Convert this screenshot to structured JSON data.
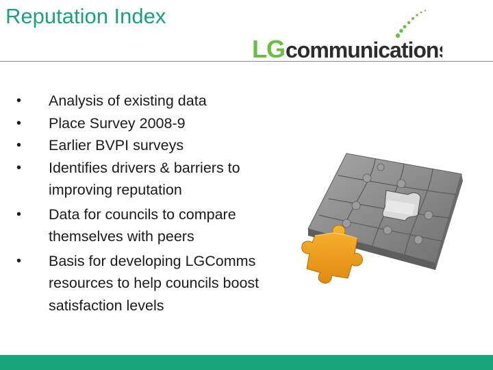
{
  "slide": {
    "title": "Reputation Index"
  },
  "logo": {
    "text_lg": "LG",
    "text_rest": "communications",
    "text": "LGcommunications"
  },
  "bullets": [
    "Analysis of existing data",
    "Place Survey 2008-9",
    "Earlier BVPI surveys",
    "Identifies drivers & barriers to improving reputation",
    "Data for councils to compare themselves with peers",
    "Basis for developing LGComms resources to help councils boost satisfaction levels"
  ],
  "colors": {
    "title": "#1aa37a",
    "footer_bar": "#17a679",
    "logo_lg": "#6bbf3f",
    "logo_text": "#2d2d2d",
    "puzzle_grey": "#8a8a8a",
    "puzzle_orange": "#f0a018"
  },
  "image": {
    "icon": "puzzle-pieces-image"
  }
}
